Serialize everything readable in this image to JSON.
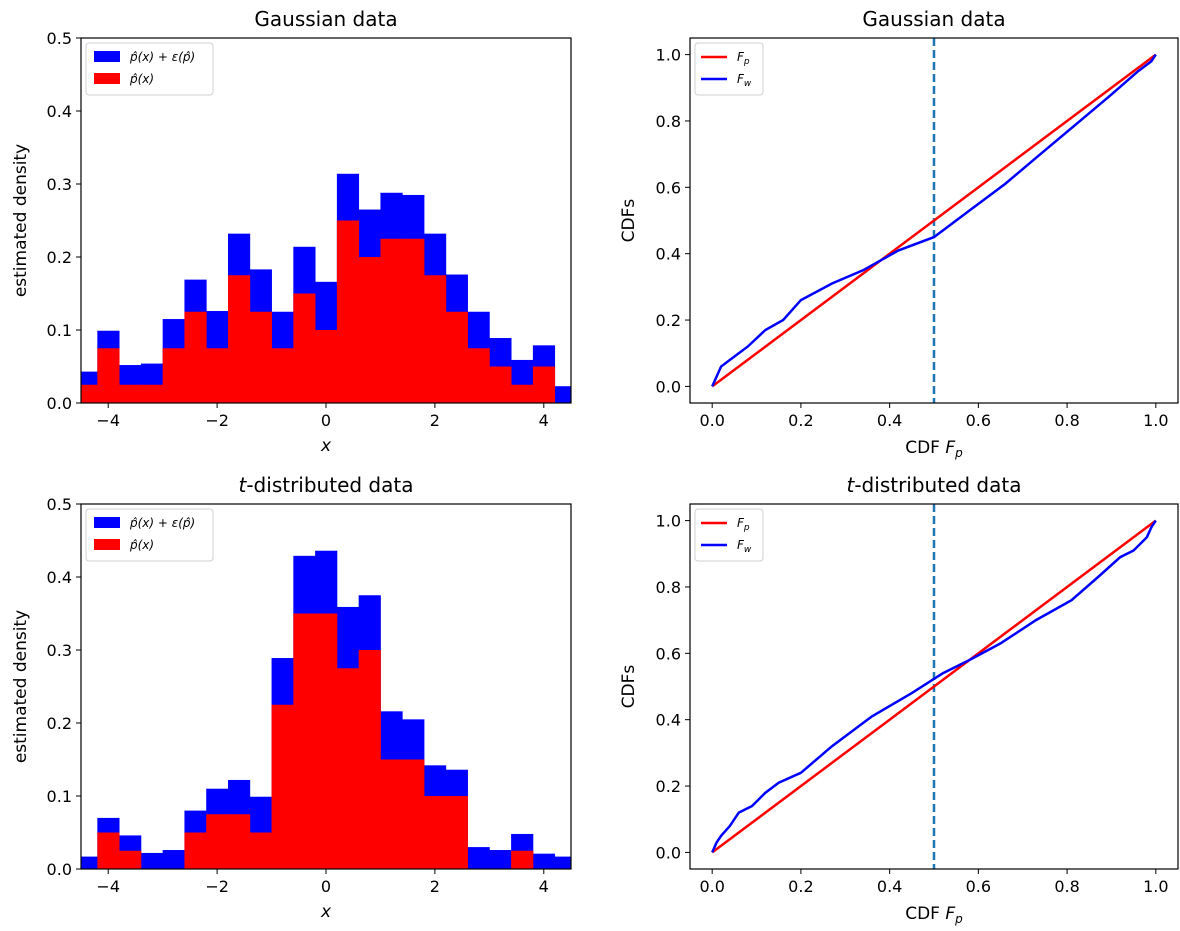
{
  "chart_data": [
    {
      "type": "bar",
      "panel": "top-left",
      "title": "Gaussian data",
      "xlabel": "x",
      "ylabel": "estimated density",
      "xlim": [
        -4.5,
        4.5
      ],
      "ylim": [
        0,
        0.5
      ],
      "xticks": [
        -4,
        -2,
        0,
        2,
        4
      ],
      "xtick_labels": [
        "−4",
        "−2",
        "0",
        "2",
        "4"
      ],
      "yticks": [
        0.0,
        0.1,
        0.2,
        0.3,
        0.4,
        0.5
      ],
      "ytick_labels": [
        "0.0",
        "0.1",
        "0.2",
        "0.3",
        "0.4",
        "0.5"
      ],
      "bin_edges": [
        -4.6,
        -4.2,
        -3.8,
        -3.4,
        -3.0,
        -2.6,
        -2.2,
        -1.8,
        -1.4,
        -1.0,
        -0.6,
        -0.2,
        0.2,
        0.6,
        1.0,
        1.4,
        1.8,
        2.2,
        2.6,
        3.0,
        3.4,
        3.8,
        4.2,
        4.6
      ],
      "series": [
        {
          "name": "p̂(x) + ε(p̂)",
          "color": "#0000ff",
          "values": [
            0.043,
            0.099,
            0.052,
            0.054,
            0.115,
            0.169,
            0.126,
            0.232,
            0.183,
            0.125,
            0.214,
            0.166,
            0.314,
            0.265,
            0.288,
            0.285,
            0.232,
            0.176,
            0.125,
            0.089,
            0.059,
            0.079,
            0.023
          ]
        },
        {
          "name": "p̂(x)",
          "color": "#ff0000",
          "values": [
            0.025,
            0.075,
            0.025,
            0.025,
            0.075,
            0.125,
            0.075,
            0.175,
            0.125,
            0.075,
            0.15,
            0.1,
            0.25,
            0.2,
            0.225,
            0.225,
            0.175,
            0.125,
            0.075,
            0.05,
            0.025,
            0.05,
            0.0
          ]
        }
      ],
      "legend": "top-left"
    },
    {
      "type": "line",
      "panel": "top-right",
      "title": "Gaussian data",
      "xlabel": "CDF F_p",
      "ylabel": "CDFs",
      "xlim": [
        -0.05,
        1.05
      ],
      "ylim": [
        -0.05,
        1.05
      ],
      "xticks": [
        0.0,
        0.2,
        0.4,
        0.6,
        0.8,
        1.0
      ],
      "xtick_labels": [
        "0.0",
        "0.2",
        "0.4",
        "0.6",
        "0.8",
        "1.0"
      ],
      "yticks": [
        0.0,
        0.2,
        0.4,
        0.6,
        0.8,
        1.0
      ],
      "ytick_labels": [
        "0.0",
        "0.2",
        "0.4",
        "0.6",
        "0.8",
        "1.0"
      ],
      "vline": 0.5,
      "series": [
        {
          "name": "F_p",
          "color": "#ff0000",
          "x": [
            0,
            1
          ],
          "y": [
            0,
            1
          ]
        },
        {
          "name": "F_w",
          "color": "#0000ff",
          "x": [
            0.0,
            0.02,
            0.05,
            0.08,
            0.12,
            0.16,
            0.2,
            0.27,
            0.34,
            0.42,
            0.5,
            0.58,
            0.66,
            0.74,
            0.82,
            0.9,
            0.96,
            0.99,
            1.0
          ],
          "y": [
            0.0,
            0.06,
            0.09,
            0.12,
            0.17,
            0.2,
            0.26,
            0.31,
            0.35,
            0.41,
            0.45,
            0.53,
            0.61,
            0.7,
            0.79,
            0.88,
            0.95,
            0.98,
            1.0
          ]
        }
      ],
      "legend": "top-left"
    },
    {
      "type": "bar",
      "panel": "bottom-left",
      "title": "t-distributed data",
      "xlabel": "x",
      "ylabel": "estimated density",
      "xlim": [
        -4.5,
        4.5
      ],
      "ylim": [
        0,
        0.5
      ],
      "xticks": [
        -4,
        -2,
        0,
        2,
        4
      ],
      "xtick_labels": [
        "−4",
        "−2",
        "0",
        "2",
        "4"
      ],
      "yticks": [
        0.0,
        0.1,
        0.2,
        0.3,
        0.4,
        0.5
      ],
      "ytick_labels": [
        "0.0",
        "0.1",
        "0.2",
        "0.3",
        "0.4",
        "0.5"
      ],
      "bin_edges": [
        -4.6,
        -4.2,
        -3.8,
        -3.4,
        -3.0,
        -2.6,
        -2.2,
        -1.8,
        -1.4,
        -1.0,
        -0.6,
        -0.2,
        0.2,
        0.6,
        1.0,
        1.4,
        1.8,
        2.2,
        2.6,
        3.0,
        3.4,
        3.8,
        4.2,
        4.6
      ],
      "series": [
        {
          "name": "p̂(x) + ε(p̂)",
          "color": "#0000ff",
          "values": [
            0.017,
            0.07,
            0.046,
            0.022,
            0.026,
            0.08,
            0.11,
            0.122,
            0.099,
            0.289,
            0.429,
            0.436,
            0.359,
            0.375,
            0.216,
            0.205,
            0.142,
            0.136,
            0.03,
            0.026,
            0.048,
            0.021,
            0.017
          ]
        },
        {
          "name": "p̂(x)",
          "color": "#ff0000",
          "values": [
            0.0,
            0.05,
            0.025,
            0.0,
            0.0,
            0.05,
            0.075,
            0.075,
            0.05,
            0.225,
            0.35,
            0.35,
            0.275,
            0.3,
            0.15,
            0.15,
            0.1,
            0.1,
            0.0,
            0.0,
            0.025,
            0.0,
            0.0
          ]
        }
      ],
      "legend": "top-left"
    },
    {
      "type": "line",
      "panel": "bottom-right",
      "title": "t-distributed data",
      "xlabel": "CDF F_p",
      "ylabel": "CDFs",
      "xlim": [
        -0.05,
        1.05
      ],
      "ylim": [
        -0.05,
        1.05
      ],
      "xticks": [
        0.0,
        0.2,
        0.4,
        0.6,
        0.8,
        1.0
      ],
      "xtick_labels": [
        "0.0",
        "0.2",
        "0.4",
        "0.6",
        "0.8",
        "1.0"
      ],
      "yticks": [
        0.0,
        0.2,
        0.4,
        0.6,
        0.8,
        1.0
      ],
      "ytick_labels": [
        "0.0",
        "0.2",
        "0.4",
        "0.6",
        "0.8",
        "1.0"
      ],
      "vline": 0.5,
      "series": [
        {
          "name": "F_p",
          "color": "#ff0000",
          "x": [
            0,
            1
          ],
          "y": [
            0,
            1
          ]
        },
        {
          "name": "F_w",
          "color": "#0000ff",
          "x": [
            0.0,
            0.01,
            0.02,
            0.04,
            0.06,
            0.09,
            0.12,
            0.15,
            0.2,
            0.27,
            0.36,
            0.45,
            0.52,
            0.58,
            0.65,
            0.73,
            0.81,
            0.87,
            0.92,
            0.95,
            0.98,
            0.99,
            1.0
          ],
          "y": [
            0.0,
            0.03,
            0.05,
            0.08,
            0.12,
            0.14,
            0.18,
            0.21,
            0.24,
            0.32,
            0.41,
            0.48,
            0.54,
            0.58,
            0.63,
            0.7,
            0.76,
            0.83,
            0.89,
            0.91,
            0.95,
            0.98,
            1.0
          ]
        }
      ],
      "legend": "top-left"
    }
  ],
  "vline_color": "#1f77b4"
}
